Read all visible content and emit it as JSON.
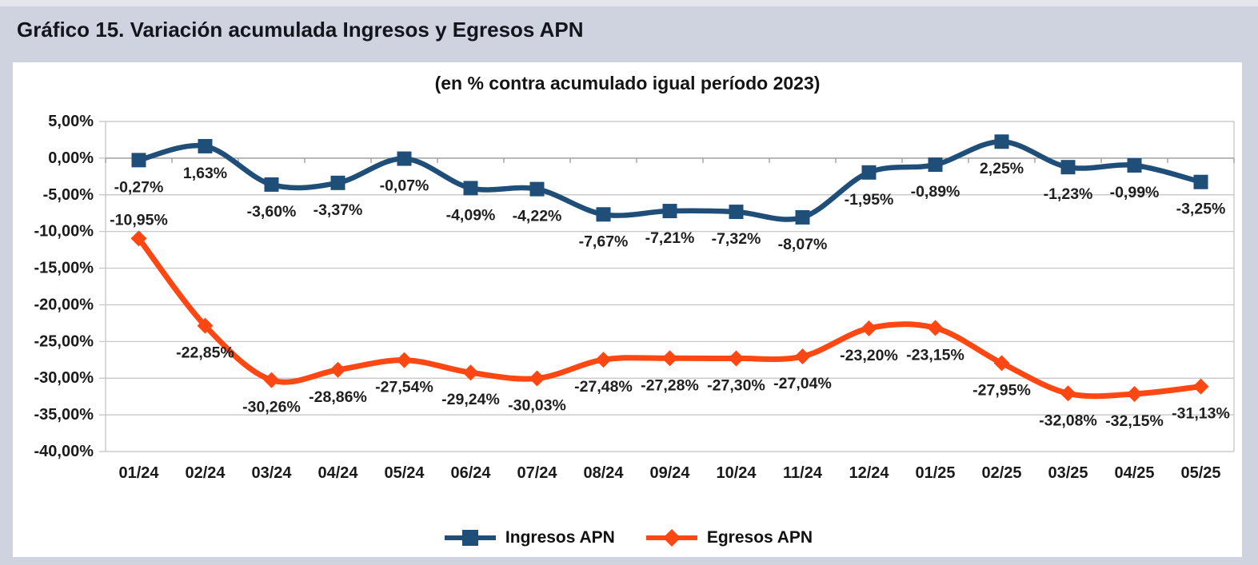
{
  "page": {
    "title": "Gráfico 15. Variación acumulada Ingresos y Egresos APN",
    "background": "#CED3DF",
    "top_strip_color": "#E4E6EC",
    "panel_background": "#FFFFFF"
  },
  "chart_data": {
    "type": "line",
    "title": "(en % contra acumulado igual período 2023)",
    "categories": [
      "01/24",
      "02/24",
      "03/24",
      "04/24",
      "05/24",
      "06/24",
      "07/24",
      "08/24",
      "09/24",
      "10/24",
      "11/24",
      "12/24",
      "01/25",
      "02/25",
      "03/25",
      "04/25",
      "05/25"
    ],
    "series": [
      {
        "name": "Ingresos APN",
        "color": "#1F4E79",
        "marker": "square",
        "line_width": 6.5,
        "values": [
          -0.27,
          1.63,
          -3.6,
          -3.37,
          -0.07,
          -4.09,
          -4.22,
          -7.67,
          -7.21,
          -7.32,
          -8.07,
          -1.95,
          -0.89,
          2.25,
          -1.23,
          -0.99,
          -3.25
        ],
        "labels": [
          "-0,27%",
          "1,63%",
          "-3,60%",
          "-3,37%",
          "-0,07%",
          "-4,09%",
          "-4,22%",
          "-7,67%",
          "-7,21%",
          "-7,32%",
          "-8,07%",
          "-1,95%",
          "-0,89%",
          "2,25%",
          "-1,23%",
          "-0,99%",
          "-3,25%"
        ],
        "label_positions": [
          "below",
          "below",
          "below",
          "below",
          "below",
          "below",
          "below",
          "below",
          "below",
          "below",
          "below",
          "below",
          "below",
          "below",
          "below",
          "below",
          "below"
        ]
      },
      {
        "name": "Egresos APN",
        "color": "#FF4713",
        "marker": "diamond",
        "line_width": 7,
        "values": [
          -10.95,
          -22.85,
          -30.26,
          -28.86,
          -27.54,
          -29.24,
          -30.03,
          -27.48,
          -27.28,
          -27.3,
          -27.04,
          -23.2,
          -23.15,
          -27.95,
          -32.08,
          -32.15,
          -31.13
        ],
        "labels": [
          "-10,95%",
          "-22,85%",
          "-30,26%",
          "-28,86%",
          "-27,54%",
          "-29,24%",
          "-30,03%",
          "-27,48%",
          "-27,28%",
          "-27,30%",
          "-27,04%",
          "-23,20%",
          "-23,15%",
          "-27,95%",
          "-32,08%",
          "-32,15%",
          "-31,13%"
        ],
        "label_positions": [
          "above",
          "below",
          "below",
          "below",
          "below",
          "below",
          "below",
          "below",
          "below",
          "below",
          "below",
          "below",
          "below",
          "below",
          "below",
          "below",
          "below"
        ]
      }
    ],
    "y_axis": {
      "min": -40,
      "max": 5,
      "step": 5,
      "tick_labels": [
        "5,00%",
        "0,00%",
        "-5,00%",
        "-10,00%",
        "-15,00%",
        "-20,00%",
        "-25,00%",
        "-30,00%",
        "-35,00%",
        "-40,00%"
      ]
    },
    "grid": true,
    "legend_position": "bottom",
    "style": {
      "gridline_color": "#C2C2C2",
      "axis_line_color": "#9E9E9E",
      "axis_text_color": "#1a1a1a",
      "data_label_color": "#1f1f1f"
    }
  }
}
